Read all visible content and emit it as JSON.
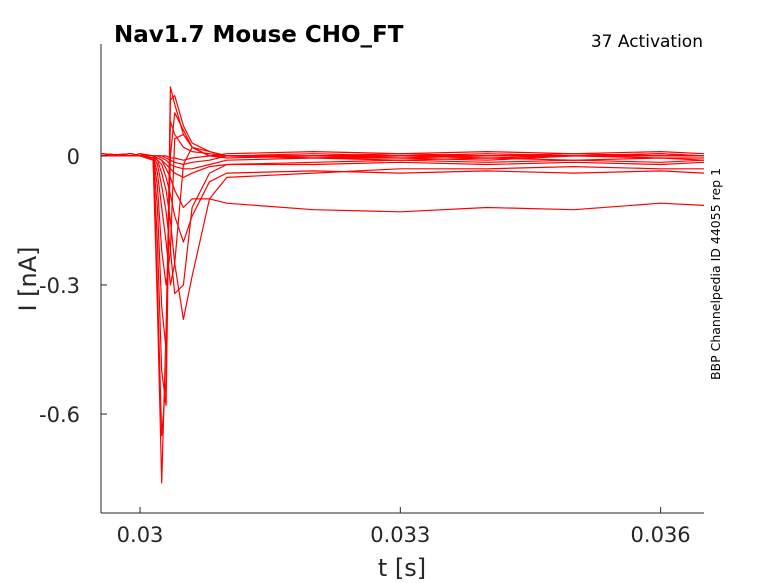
{
  "chart_data": {
    "type": "line",
    "title": "Nav1.7  Mouse  CHO_FT",
    "subtitle": "37  Activation",
    "side_label": "BBP Channelpedia ID 44055 rep 1",
    "xlabel": "t [s]",
    "ylabel": "I [nA]",
    "xlim": [
      0.02955,
      0.0365
    ],
    "ylim": [
      -0.83,
      0.26
    ],
    "xticks": [
      0.03,
      0.033,
      0.036
    ],
    "xtick_labels": [
      "0.03",
      "0.033",
      "0.036"
    ],
    "yticks": [
      0,
      -0.3,
      -0.6
    ],
    "ytick_labels": [
      "0",
      "-0.3",
      "-0.6"
    ],
    "series_color": "#ff0000",
    "series": [
      {
        "x": [
          0.02955,
          0.0299,
          0.03,
          0.03015,
          0.0302,
          0.03025,
          0.0303,
          0.03035,
          0.0304,
          0.0305,
          0.0306,
          0.0308,
          0.031,
          0.032,
          0.033,
          0.034,
          0.035,
          0.036,
          0.0365
        ],
        "values": [
          0.005,
          0.0,
          0.0,
          -0.005,
          -0.35,
          -0.76,
          -0.4,
          0.08,
          0.05,
          0.02,
          0.01,
          0.005,
          0.0,
          0.0,
          0.0,
          0.0,
          0.0,
          0.0,
          0.0
        ]
      },
      {
        "x": [
          0.02955,
          0.0299,
          0.03,
          0.03015,
          0.0302,
          0.03025,
          0.0303,
          0.03035,
          0.0304,
          0.0305,
          0.0306,
          0.0308,
          0.031,
          0.032,
          0.033,
          0.034,
          0.035,
          0.036,
          0.0365
        ],
        "values": [
          0.0,
          0.005,
          0.0,
          -0.01,
          -0.3,
          -0.65,
          -0.52,
          0.16,
          0.12,
          0.05,
          0.02,
          0.0,
          0.0,
          -0.005,
          0.0,
          0.0,
          0.0,
          0.005,
          0.0
        ]
      },
      {
        "x": [
          0.02955,
          0.0299,
          0.03,
          0.03015,
          0.0302,
          0.03025,
          0.0303,
          0.03035,
          0.0304,
          0.0305,
          0.0306,
          0.0308,
          0.031,
          0.032,
          0.033,
          0.034,
          0.035,
          0.036,
          0.0365
        ],
        "values": [
          0.0,
          0.0,
          0.005,
          -0.01,
          -0.2,
          -0.5,
          -0.58,
          0.13,
          0.14,
          0.07,
          0.03,
          0.01,
          0.0,
          0.0,
          0.005,
          0.0,
          0.0,
          0.0,
          0.0
        ]
      },
      {
        "x": [
          0.02955,
          0.0299,
          0.03,
          0.03015,
          0.0302,
          0.03025,
          0.0303,
          0.03035,
          0.0304,
          0.0305,
          0.0306,
          0.0308,
          0.031,
          0.032,
          0.033,
          0.034,
          0.035,
          0.036,
          0.0365
        ],
        "values": [
          0.0,
          0.005,
          0.0,
          -0.005,
          -0.12,
          -0.35,
          -0.45,
          0.0,
          0.1,
          0.06,
          0.02,
          0.0,
          -0.005,
          0.0,
          0.0,
          -0.005,
          0.0,
          0.0,
          0.0
        ]
      },
      {
        "x": [
          0.02955,
          0.0299,
          0.03,
          0.03015,
          0.0302,
          0.03025,
          0.0303,
          0.03035,
          0.0304,
          0.0305,
          0.0306,
          0.0308,
          0.031,
          0.032,
          0.033,
          0.034,
          0.035,
          0.036,
          0.0365
        ],
        "values": [
          0.005,
          0.0,
          0.0,
          0.0,
          -0.07,
          -0.22,
          -0.3,
          -0.22,
          0.04,
          0.05,
          0.02,
          0.0,
          0.0,
          0.0,
          -0.005,
          0.0,
          0.005,
          0.0,
          0.0
        ]
      },
      {
        "x": [
          0.02955,
          0.0299,
          0.03,
          0.03015,
          0.0302,
          0.03025,
          0.0303,
          0.03035,
          0.0304,
          0.0305,
          0.0306,
          0.0308,
          0.031,
          0.032,
          0.033,
          0.034,
          0.035,
          0.036,
          0.0365
        ],
        "values": [
          0.0,
          0.0,
          0.005,
          0.0,
          -0.04,
          -0.12,
          -0.2,
          -0.3,
          -0.25,
          -0.02,
          0.02,
          0.01,
          0.0,
          -0.005,
          -0.01,
          -0.005,
          -0.01,
          -0.005,
          -0.01
        ]
      },
      {
        "x": [
          0.02955,
          0.0299,
          0.03,
          0.03015,
          0.0302,
          0.03025,
          0.0303,
          0.03035,
          0.0304,
          0.0305,
          0.0306,
          0.0308,
          0.031,
          0.032,
          0.033,
          0.034,
          0.035,
          0.036,
          0.0365
        ],
        "values": [
          0.0,
          0.005,
          0.0,
          0.0,
          -0.02,
          -0.07,
          -0.13,
          -0.22,
          -0.32,
          -0.3,
          -0.12,
          -0.04,
          -0.02,
          -0.02,
          -0.015,
          -0.02,
          -0.015,
          -0.02,
          -0.015
        ]
      },
      {
        "x": [
          0.02955,
          0.0299,
          0.03,
          0.03015,
          0.0302,
          0.03025,
          0.0303,
          0.03035,
          0.0304,
          0.0305,
          0.0306,
          0.0308,
          0.031,
          0.032,
          0.033,
          0.034,
          0.035,
          0.036,
          0.0365
        ],
        "values": [
          0.005,
          0.0,
          0.0,
          0.0,
          -0.01,
          -0.04,
          -0.08,
          -0.15,
          -0.25,
          -0.38,
          -0.28,
          -0.1,
          -0.05,
          -0.04,
          -0.03,
          -0.03,
          -0.025,
          -0.03,
          -0.03
        ]
      },
      {
        "x": [
          0.02955,
          0.0299,
          0.03,
          0.03015,
          0.0302,
          0.03025,
          0.0303,
          0.03035,
          0.0304,
          0.0305,
          0.0306,
          0.0308,
          0.031,
          0.032,
          0.033,
          0.034,
          0.035,
          0.036,
          0.0365
        ],
        "values": [
          0.0,
          0.0,
          0.0,
          0.0,
          -0.01,
          -0.02,
          -0.05,
          -0.09,
          -0.14,
          -0.2,
          -0.14,
          -0.06,
          -0.04,
          -0.035,
          -0.04,
          -0.035,
          -0.04,
          -0.035,
          -0.04
        ]
      },
      {
        "x": [
          0.02955,
          0.0299,
          0.03,
          0.03015,
          0.0302,
          0.03025,
          0.0303,
          0.03035,
          0.0304,
          0.0305,
          0.0306,
          0.0308,
          0.031,
          0.032,
          0.033,
          0.034,
          0.035,
          0.036,
          0.0365
        ],
        "values": [
          0.0,
          0.0,
          0.0,
          0.0,
          -0.005,
          -0.01,
          -0.03,
          -0.05,
          -0.08,
          -0.12,
          -0.1,
          -0.1,
          -0.11,
          -0.125,
          -0.13,
          -0.12,
          -0.125,
          -0.11,
          -0.115
        ]
      },
      {
        "x": [
          0.02955,
          0.0299,
          0.03,
          0.03015,
          0.0302,
          0.03025,
          0.0303,
          0.03035,
          0.0304,
          0.0305,
          0.0306,
          0.0308,
          0.031,
          0.032,
          0.033,
          0.034,
          0.035,
          0.036,
          0.0365
        ],
        "values": [
          0.005,
          0.0,
          0.0,
          0.0,
          -0.005,
          -0.01,
          -0.02,
          -0.03,
          -0.04,
          -0.05,
          -0.04,
          -0.025,
          -0.02,
          -0.015,
          -0.01,
          -0.015,
          -0.01,
          -0.015,
          -0.01
        ]
      },
      {
        "x": [
          0.02955,
          0.0299,
          0.03,
          0.03015,
          0.0302,
          0.03025,
          0.0303,
          0.03035,
          0.0304,
          0.0305,
          0.0306,
          0.0308,
          0.031,
          0.032,
          0.033,
          0.034,
          0.035,
          0.036,
          0.0365
        ],
        "values": [
          0.0,
          0.005,
          0.0,
          0.0,
          0.0,
          -0.005,
          -0.01,
          -0.02,
          -0.025,
          -0.03,
          -0.03,
          -0.02,
          -0.01,
          -0.005,
          -0.005,
          -0.01,
          0.0,
          -0.005,
          -0.005
        ]
      },
      {
        "x": [
          0.02955,
          0.0299,
          0.03,
          0.03015,
          0.0302,
          0.03025,
          0.0303,
          0.03035,
          0.0304,
          0.0305,
          0.0306,
          0.0308,
          0.031,
          0.032,
          0.033,
          0.034,
          0.035,
          0.036,
          0.0365
        ],
        "values": [
          0.0,
          0.0,
          0.005,
          0.0,
          0.0,
          0.0,
          -0.005,
          -0.01,
          -0.015,
          -0.02,
          -0.015,
          -0.01,
          0.0,
          0.005,
          0.0,
          0.005,
          0.0,
          0.005,
          0.0
        ]
      },
      {
        "x": [
          0.02955,
          0.0299,
          0.03,
          0.03015,
          0.0302,
          0.03025,
          0.0303,
          0.03035,
          0.0304,
          0.0305,
          0.0306,
          0.0308,
          0.031,
          0.032,
          0.033,
          0.034,
          0.035,
          0.036,
          0.0365
        ],
        "values": [
          0.005,
          0.0,
          0.0,
          0.0,
          0.0,
          0.0,
          0.0,
          -0.005,
          -0.005,
          -0.01,
          -0.005,
          0.0,
          0.005,
          0.01,
          0.005,
          0.01,
          0.005,
          0.01,
          0.005
        ]
      }
    ]
  }
}
